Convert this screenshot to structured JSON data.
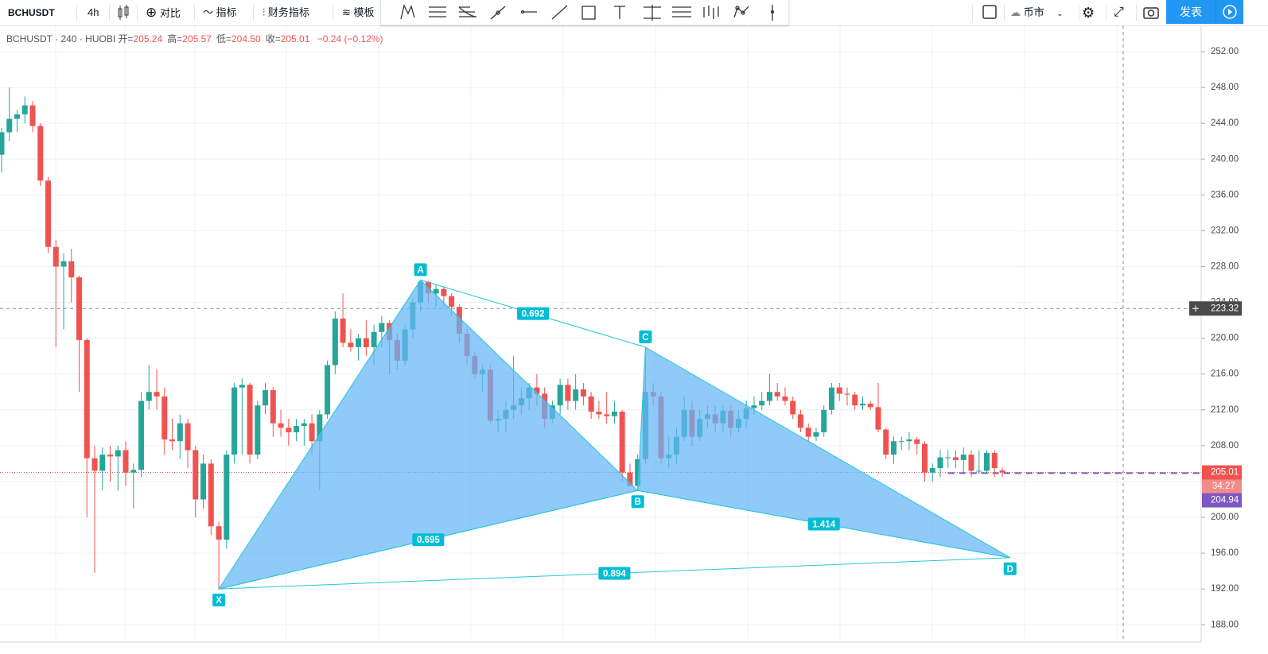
{
  "toolbar": {
    "symbol": "BCHUSDT",
    "interval": "4h",
    "compare": "对比",
    "indicators": "指标",
    "financials": "财务指标",
    "templates": "模板",
    "market": "币市",
    "publish": "发表"
  },
  "legend": {
    "symbol": "BCHUSDT",
    "resolution": "240",
    "exchange": "HUOBI",
    "items": [
      {
        "label": "开=",
        "value": "205.24"
      },
      {
        "label": "高=",
        "value": "205.57"
      },
      {
        "label": "低=",
        "value": "204.50"
      },
      {
        "label": "收=",
        "value": "205.01"
      }
    ],
    "change": "−0.24 (−0.12%)"
  },
  "chart_data": {
    "type": "candlestick",
    "up_color": "#26a69a",
    "down_color": "#ef5350",
    "grid": true,
    "ylim": [
      186.07,
      254.93
    ],
    "yticks": [
      {
        "value": 188,
        "label": "188.00"
      },
      {
        "value": 192,
        "label": "192.00"
      },
      {
        "value": 196,
        "label": "196.00"
      },
      {
        "value": 200,
        "label": "200.00"
      },
      {
        "value": 204,
        "label": "204.00"
      },
      {
        "value": 208,
        "label": "208.00"
      },
      {
        "value": 212,
        "label": "212.00"
      },
      {
        "value": 216,
        "label": "216.00"
      },
      {
        "value": 220,
        "label": "220.00"
      },
      {
        "value": 224,
        "label": "224.00"
      },
      {
        "value": 228,
        "label": "228.00"
      },
      {
        "value": 232,
        "label": "232.00"
      },
      {
        "value": 236,
        "label": "236.00"
      },
      {
        "value": 240,
        "label": "240.00"
      },
      {
        "value": 244,
        "label": "244.00"
      },
      {
        "value": 248,
        "label": "248.00"
      },
      {
        "value": 252,
        "label": "252.00"
      }
    ],
    "ohlc": [
      [
        240.5,
        243.5,
        238.5,
        243
      ],
      [
        243,
        248,
        242,
        244.5
      ],
      [
        244.5,
        245.5,
        243,
        245
      ],
      [
        245,
        247,
        244,
        246
      ],
      [
        246,
        246.5,
        243,
        243.7
      ],
      [
        243.7,
        244,
        237,
        237.6
      ],
      [
        237.6,
        238,
        229.5,
        230.2
      ],
      [
        230.2,
        231,
        219,
        228
      ],
      [
        228,
        229.5,
        221,
        228.6
      ],
      [
        228.6,
        230,
        224,
        226.8
      ],
      [
        226.8,
        227,
        214,
        219.8
      ],
      [
        219.8,
        220,
        200,
        206.6
      ],
      [
        206.6,
        208,
        193.8,
        205.2
      ],
      [
        205.2,
        207.8,
        203,
        207
      ],
      [
        207,
        208,
        204,
        206.8
      ],
      [
        206.8,
        208,
        203,
        207.5
      ],
      [
        207.5,
        208.5,
        203.5,
        205
      ],
      [
        205,
        206,
        201,
        205.3
      ],
      [
        205.3,
        214,
        204.5,
        213
      ],
      [
        213,
        217,
        212,
        214
      ],
      [
        214,
        216.5,
        212,
        213.5
      ],
      [
        213.5,
        214.5,
        207,
        208.7
      ],
      [
        208.7,
        211,
        207.5,
        208.5
      ],
      [
        208.5,
        211.5,
        206.5,
        210.5
      ],
      [
        210.5,
        211,
        205.5,
        207.5
      ],
      [
        207.5,
        208,
        200,
        202
      ],
      [
        202,
        207,
        201,
        206
      ],
      [
        206,
        206.5,
        198,
        199
      ],
      [
        199,
        199.5,
        192,
        197.5
      ],
      [
        197.5,
        207.5,
        196.5,
        207
      ],
      [
        207,
        215,
        206,
        214.5
      ],
      [
        214.5,
        215.5,
        207,
        214.8
      ],
      [
        214.8,
        215,
        206,
        207
      ],
      [
        207,
        213,
        206.5,
        212.5
      ],
      [
        212.5,
        215,
        211.5,
        214.2
      ],
      [
        214.2,
        214.5,
        209,
        210.5
      ],
      [
        210.5,
        212,
        209,
        210
      ],
      [
        210,
        211,
        208,
        209.5
      ],
      [
        209.5,
        211,
        208.5,
        210.2
      ],
      [
        210.2,
        211,
        208,
        210.5
      ],
      [
        210.5,
        211.5,
        207,
        208.5
      ],
      [
        208.5,
        212,
        203,
        211.5
      ],
      [
        211.5,
        217.5,
        211,
        217
      ],
      [
        217,
        223,
        216,
        222.2
      ],
      [
        222.2,
        225,
        219,
        219.5
      ],
      [
        219.5,
        221,
        218.5,
        219
      ],
      [
        219,
        220.5,
        217.5,
        220
      ],
      [
        220,
        222,
        218,
        219
      ],
      [
        219,
        221.5,
        217,
        220.7
      ],
      [
        220.7,
        222.5,
        219,
        221.7
      ],
      [
        221.7,
        222,
        216,
        219.8
      ],
      [
        219.8,
        220.5,
        216.5,
        217.5
      ],
      [
        217.5,
        221.5,
        217,
        221
      ],
      [
        221,
        224.5,
        220,
        224
      ],
      [
        224,
        226.5,
        223,
        226.3
      ],
      [
        226.3,
        226.4,
        224,
        225
      ],
      [
        225,
        226,
        223.5,
        225.5
      ],
      [
        225.5,
        225.8,
        223.5,
        224.7
      ],
      [
        224.7,
        225,
        222.5,
        223.5
      ],
      [
        223.5,
        223.8,
        219.5,
        220.5
      ],
      [
        220.5,
        221,
        217,
        218
      ],
      [
        218,
        218.5,
        215.5,
        216
      ],
      [
        216,
        217,
        214,
        216.5
      ],
      [
        216.5,
        217,
        210.5,
        210.8
      ],
      [
        210.8,
        212,
        209.5,
        211
      ],
      [
        211,
        213,
        209.5,
        212
      ],
      [
        212,
        218,
        211,
        212.5
      ],
      [
        212.5,
        214.5,
        211.5,
        213.3
      ],
      [
        213.3,
        215,
        212,
        214.5
      ],
      [
        214.5,
        216,
        212.5,
        213.8
      ],
      [
        213.8,
        214.5,
        210,
        211
      ],
      [
        211,
        213,
        210.5,
        212.5
      ],
      [
        212.5,
        215.5,
        211.5,
        214.8
      ],
      [
        214.8,
        215.5,
        212,
        213
      ],
      [
        213,
        216,
        212,
        214.3
      ],
      [
        214.3,
        215,
        212.5,
        213.5
      ],
      [
        213.5,
        214,
        211,
        211.8
      ],
      [
        211.8,
        213,
        211,
        211.5
      ],
      [
        211.5,
        214,
        210.5,
        211.3
      ],
      [
        211.3,
        213,
        210.5,
        211.8
      ],
      [
        211.8,
        212,
        204,
        205
      ],
      [
        205,
        206,
        203.5,
        203.5
      ],
      [
        203.5,
        207,
        203,
        206.5
      ],
      [
        206.5,
        219,
        206,
        214
      ],
      [
        214,
        215,
        212.5,
        213.5
      ],
      [
        213.5,
        214,
        206,
        206.6
      ],
      [
        206.6,
        209,
        205.5,
        207
      ],
      [
        207,
        210,
        206,
        209
      ],
      [
        209,
        213.5,
        208.5,
        212
      ],
      [
        212,
        213,
        208,
        209
      ],
      [
        209,
        212,
        208.5,
        211
      ],
      [
        211,
        212.5,
        210,
        211.5
      ],
      [
        211.5,
        212.5,
        209.5,
        210.5
      ],
      [
        210.5,
        212.5,
        209.5,
        211.9
      ],
      [
        211.9,
        212.5,
        209,
        210
      ],
      [
        210,
        212,
        209.5,
        211
      ],
      [
        211,
        213,
        210,
        212.2
      ],
      [
        212.2,
        213.5,
        211.5,
        212.5
      ],
      [
        212.5,
        214,
        212,
        213
      ],
      [
        213,
        216,
        212.5,
        214
      ],
      [
        214,
        215,
        213,
        213.5
      ],
      [
        213.5,
        214.5,
        212.5,
        213
      ],
      [
        213,
        213.5,
        211,
        211.5
      ],
      [
        211.5,
        212,
        209.5,
        210
      ],
      [
        210,
        210.5,
        208.5,
        209
      ],
      [
        209,
        210,
        208.5,
        209.5
      ],
      [
        209.5,
        212.5,
        209,
        212
      ],
      [
        212,
        215,
        211.5,
        214.5
      ],
      [
        214.5,
        215,
        213,
        213.8
      ],
      [
        213.8,
        214.5,
        212.5,
        213.7
      ],
      [
        213.7,
        214,
        212,
        212.5
      ],
      [
        212.5,
        213.5,
        212,
        212.7
      ],
      [
        212.7,
        213,
        212,
        212.3
      ],
      [
        212.3,
        215,
        209.5,
        209.8
      ],
      [
        209.8,
        210,
        206.5,
        207
      ],
      [
        207,
        209,
        206,
        208.5
      ],
      [
        208.5,
        209,
        207.5,
        208.5
      ],
      [
        208.5,
        209.5,
        207.5,
        208.7
      ],
      [
        208.7,
        209,
        207,
        208.2
      ],
      [
        208.2,
        208.5,
        204,
        205
      ],
      [
        205,
        206,
        204,
        205.5
      ],
      [
        205.5,
        207.5,
        204.5,
        206.7
      ],
      [
        206.7,
        207.5,
        205.5,
        206.7
      ],
      [
        206.7,
        207.5,
        205.5,
        206.4
      ],
      [
        206.4,
        207.8,
        205,
        207
      ],
      [
        207,
        207.5,
        204.5,
        205.2
      ],
      [
        205.2,
        207.5,
        204.8,
        205.2
      ],
      [
        205.2,
        207.5,
        205,
        207.2
      ],
      [
        207.2,
        207.5,
        204.5,
        205.5
      ],
      [
        205.24,
        205.57,
        204.5,
        205.01
      ]
    ],
    "pattern": {
      "fill_color": "#64b5f6",
      "line_color": "#26c6da",
      "points": [
        {
          "label": "X",
          "index": 28,
          "value": 192
        },
        {
          "label": "A",
          "index": 54,
          "value": 226.5
        },
        {
          "label": "B",
          "index": 82,
          "value": 203
        },
        {
          "label": "C",
          "index": 83,
          "value": 219
        },
        {
          "label": "D",
          "index": 130,
          "value": 195.5
        }
      ],
      "ratios": [
        0.695,
        0.692,
        1.414,
        0.894
      ]
    },
    "crosshair_price": 223.32,
    "last_price": 205.01,
    "countdown": "34:27",
    "bid_price": 204.94,
    "last_color": "#ef5350",
    "bid_color": "#7e57c2"
  }
}
